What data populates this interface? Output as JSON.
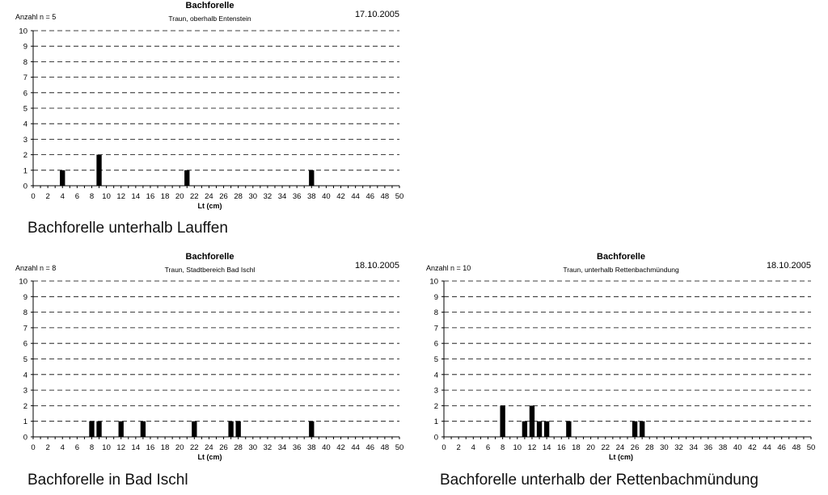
{
  "chart_data": [
    {
      "type": "bar",
      "title": "Bachforelle",
      "subtitle": "Traun, oberhalb Entenstein",
      "date": "17.10.2005",
      "count_label": "Anzahl  n = 5",
      "xlabel": "Lt (cm)",
      "ylabel": "Anzahl",
      "xlim": [
        0,
        50
      ],
      "ylim": [
        0,
        10
      ],
      "x_ticks": [
        0,
        2,
        4,
        6,
        8,
        10,
        12,
        14,
        16,
        18,
        20,
        22,
        24,
        26,
        28,
        30,
        32,
        34,
        36,
        38,
        40,
        42,
        44,
        46,
        48,
        50
      ],
      "y_ticks": [
        0,
        1,
        2,
        3,
        4,
        5,
        6,
        7,
        8,
        9,
        10
      ],
      "grid": "dashed horizontal",
      "x": [
        4,
        9,
        21,
        38
      ],
      "values": [
        1,
        2,
        1,
        1
      ],
      "caption": "Bachforelle unterhalb Lauffen"
    },
    {
      "type": "bar",
      "title": "Bachforelle",
      "subtitle": "Traun, Stadtbereich Bad Ischl",
      "date": "18.10.2005",
      "count_label": "Anzahl  n = 8",
      "xlabel": "Lt (cm)",
      "ylabel": "Anzahl",
      "xlim": [
        0,
        50
      ],
      "ylim": [
        0,
        10
      ],
      "x_ticks": [
        0,
        2,
        4,
        6,
        8,
        10,
        12,
        14,
        16,
        18,
        20,
        22,
        24,
        26,
        28,
        30,
        32,
        34,
        36,
        38,
        40,
        42,
        44,
        46,
        48,
        50
      ],
      "y_ticks": [
        0,
        1,
        2,
        3,
        4,
        5,
        6,
        7,
        8,
        9,
        10
      ],
      "grid": "dashed horizontal",
      "x": [
        8,
        9,
        12,
        15,
        22,
        27,
        28,
        38
      ],
      "values": [
        1,
        1,
        1,
        1,
        1,
        1,
        1,
        1
      ],
      "caption": "Bachforelle in Bad Ischl"
    },
    {
      "type": "bar",
      "title": "Bachforelle",
      "subtitle": "Traun, unterhalb Rettenbachmündung",
      "date": "18.10.2005",
      "count_label": "Anzahl  n = 10",
      "xlabel": "Lt (cm)",
      "ylabel": "Anzahl",
      "xlim": [
        0,
        50
      ],
      "ylim": [
        0,
        10
      ],
      "x_ticks": [
        0,
        2,
        4,
        6,
        8,
        10,
        12,
        14,
        16,
        18,
        20,
        22,
        24,
        26,
        28,
        30,
        32,
        34,
        36,
        38,
        40,
        42,
        44,
        46,
        48,
        50
      ],
      "y_ticks": [
        0,
        1,
        2,
        3,
        4,
        5,
        6,
        7,
        8,
        9,
        10
      ],
      "grid": "dashed horizontal",
      "x": [
        8,
        11,
        12,
        13,
        14,
        17,
        26,
        27
      ],
      "values": [
        2,
        1,
        2,
        1,
        1,
        1,
        1,
        1
      ],
      "caption": "Bachforelle unterhalb der Rettenbachmündung"
    }
  ]
}
